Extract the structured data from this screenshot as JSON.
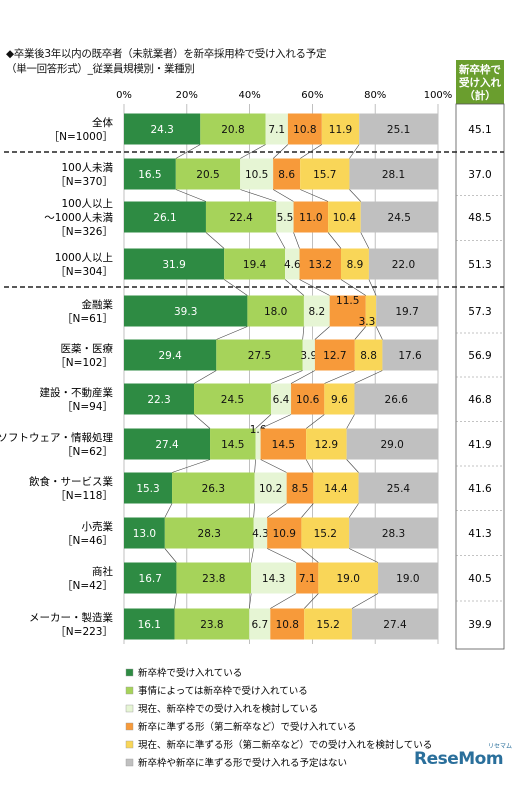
{
  "title_line1": "◆卒業後3年以内の既卒者（未就業者）を新卒採用枠で受け入れる予定",
  "title_line2": "（単一回答形式）_従業員規模別・業種別",
  "total_header": [
    "新卒枠で",
    "受け入れ",
    "（計）"
  ],
  "brand": {
    "name": "ReseMom",
    "sub": "リセマム"
  },
  "colors": [
    "#2e8b43",
    "#a6d35a",
    "#e6f5d4",
    "#f79a3a",
    "#f9d658",
    "#c0c0c0"
  ],
  "chart_data": {
    "type": "bar",
    "stacked": true,
    "orientation": "horizontal",
    "xlim": [
      0,
      100
    ],
    "xticks": [
      "0%",
      "20%",
      "40%",
      "60%",
      "80%",
      "100%"
    ],
    "series_names": [
      "新卒枠で受け入れている",
      "事情によっては新卒枠で受け入れている",
      "現在、新卒枠での受け入れを検討している",
      "新卒に準ずる形（第二新卒など）で受け入れている",
      "現在、新卒に準ずる形（第二新卒など）での受け入れを検討している",
      "新卒枠や新卒に準ずる形で受け入れる予定はない"
    ],
    "rows": [
      {
        "name": [
          "全体",
          "［N=1000］"
        ],
        "values": [
          24.3,
          20.8,
          7.1,
          10.8,
          11.9,
          25.1
        ],
        "total": "45.1"
      },
      {
        "name": [
          "100人未満",
          "［N=370］"
        ],
        "values": [
          16.5,
          20.5,
          10.5,
          8.6,
          15.7,
          28.1
        ],
        "total": "37.0"
      },
      {
        "name": [
          "100人以上",
          "～1000人未満",
          "［N=326］"
        ],
        "values": [
          26.1,
          22.4,
          5.5,
          11.0,
          10.4,
          24.5
        ],
        "total": "48.5"
      },
      {
        "name": [
          "1000人以上",
          "［N=304］"
        ],
        "values": [
          31.9,
          19.4,
          4.6,
          13.2,
          8.9,
          22.0
        ],
        "total": "51.3"
      },
      {
        "name": [
          "金融業",
          "［N=61］"
        ],
        "values": [
          39.3,
          18.0,
          8.2,
          11.5,
          3.3,
          19.7
        ],
        "total": "57.3"
      },
      {
        "name": [
          "医薬・医療",
          "［N=102］"
        ],
        "values": [
          29.4,
          27.5,
          3.9,
          12.7,
          8.8,
          17.6
        ],
        "total": "56.9"
      },
      {
        "name": [
          "建設・不動産業",
          "［N=94］"
        ],
        "values": [
          22.3,
          24.5,
          6.4,
          10.6,
          9.6,
          26.6
        ],
        "total": "46.8"
      },
      {
        "name": [
          "ソフトウェア・情報処理",
          "［N=62］"
        ],
        "values": [
          27.4,
          14.5,
          1.6,
          14.5,
          12.9,
          29.0
        ],
        "total": "41.9"
      },
      {
        "name": [
          "飲食・サービス業",
          "［N=118］"
        ],
        "values": [
          15.3,
          26.3,
          10.2,
          8.5,
          14.4,
          25.4
        ],
        "total": "41.6"
      },
      {
        "name": [
          "小売業",
          "［N=46］"
        ],
        "values": [
          13.0,
          28.3,
          4.3,
          10.9,
          15.2,
          28.3
        ],
        "total": "41.3"
      },
      {
        "name": [
          "商社",
          "［N=42］"
        ],
        "values": [
          16.7,
          23.8,
          14.3,
          7.1,
          19.0,
          19.0
        ],
        "total": "40.5"
      },
      {
        "name": [
          "メーカー・製造業",
          "［N=223］"
        ],
        "values": [
          16.1,
          23.8,
          6.7,
          10.8,
          15.2,
          27.4
        ],
        "total": "39.9"
      }
    ]
  }
}
